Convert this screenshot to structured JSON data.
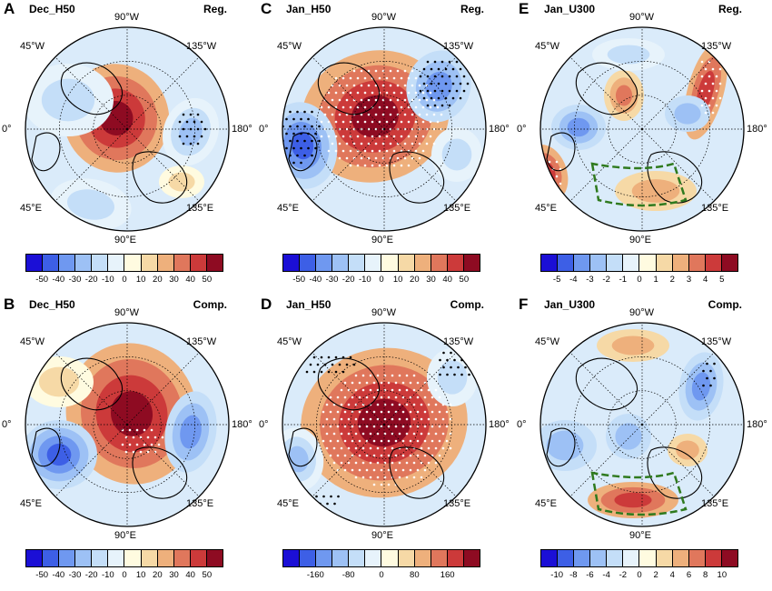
{
  "figure": {
    "panels": [
      {
        "id": "A",
        "letter": "A",
        "var": "Dec_H50",
        "method": "Reg.",
        "cbar": "c5",
        "ticks": [
          "-50",
          "-40",
          "-30",
          "-20",
          "-10",
          "0",
          "10",
          "20",
          "30",
          "40",
          "50"
        ],
        "tickIdx": [
          1,
          2,
          3,
          4,
          5,
          6,
          7,
          8,
          9,
          10,
          11
        ],
        "lon": {
          "top": "90°W",
          "tl": "45°W",
          "tr": "135°W",
          "left": "0°",
          "right": "180°",
          "bl": "45°E",
          "br": "135°E",
          "bottom": "90°E"
        }
      },
      {
        "id": "C",
        "letter": "C",
        "var": "Jan_H50",
        "method": "Reg.",
        "cbar": "c5",
        "ticks": [
          "-50",
          "-40",
          "-30",
          "-20",
          "-10",
          "0",
          "10",
          "20",
          "30",
          "40",
          "50"
        ],
        "tickIdx": [
          1,
          2,
          3,
          4,
          5,
          6,
          7,
          8,
          9,
          10,
          11
        ],
        "lon": {
          "top": "90°W",
          "tl": "45°W",
          "tr": "135°W",
          "left": "0°",
          "right": "180°",
          "bl": "45°E",
          "br": "135°E",
          "bottom": "90°E"
        }
      },
      {
        "id": "E",
        "letter": "E",
        "var": "Jan_U300",
        "method": "Reg.",
        "cbar": "c5",
        "ticks": [
          "-5",
          "-4",
          "-3",
          "-2",
          "-1",
          "0",
          "1",
          "2",
          "3",
          "4",
          "5"
        ],
        "tickIdx": [
          1,
          2,
          3,
          4,
          5,
          6,
          7,
          8,
          9,
          10,
          11
        ],
        "lon": {
          "top": "90°W",
          "tl": "45°W",
          "tr": "135°W",
          "left": "0°",
          "right": "180°",
          "bl": "45°E",
          "br": "135°E",
          "bottom": "90°E"
        }
      },
      {
        "id": "B",
        "letter": "B",
        "var": "Dec_H50",
        "method": "Comp.",
        "cbar": "c5",
        "ticks": [
          "-50",
          "-40",
          "-30",
          "-20",
          "-10",
          "0",
          "10",
          "20",
          "30",
          "40",
          "50"
        ],
        "tickIdx": [
          1,
          2,
          3,
          4,
          5,
          6,
          7,
          8,
          9,
          10,
          11
        ],
        "lon": {
          "top": "90°W",
          "tl": "45°W",
          "tr": "135°W",
          "left": "0°",
          "right": "180°",
          "bl": "45°E",
          "br": "135°E",
          "bottom": "90°E"
        }
      },
      {
        "id": "D",
        "letter": "D",
        "var": "Jan_H50",
        "method": "Comp.",
        "cbar": "c160",
        "ticks": [
          "-160",
          "-80",
          "0",
          "80",
          "160"
        ],
        "tickIdx": [
          2,
          4,
          6,
          8,
          10
        ],
        "lon": {
          "top": "90°W",
          "tl": "45°W",
          "tr": "135°W",
          "left": "0°",
          "right": "180°",
          "bl": "45°E",
          "br": "135°E",
          "bottom": "90°E"
        }
      },
      {
        "id": "F",
        "letter": "F",
        "var": "Jan_U300",
        "method": "Comp.",
        "cbar": "c10",
        "ticks": [
          "-10",
          "-8",
          "-6",
          "-4",
          "-2",
          "0",
          "2",
          "4",
          "6",
          "8",
          "10"
        ],
        "tickIdx": [
          1,
          2,
          3,
          4,
          5,
          6,
          7,
          8,
          9,
          10,
          11
        ],
        "lon": {
          "top": "90°W",
          "tl": "45°W",
          "tr": "135°W",
          "left": "0°",
          "right": "180°",
          "bl": "45°E",
          "br": "135°E",
          "bottom": "90°E"
        }
      }
    ],
    "colors": [
      "#1b0fd6",
      "#3d5fe6",
      "#6f98f0",
      "#9dc1f5",
      "#c4def8",
      "#e7f3fb",
      "#fffbe0",
      "#f6d9a6",
      "#eeb07c",
      "#e0775c",
      "#cc3a3a",
      "#8e0b22"
    ]
  }
}
